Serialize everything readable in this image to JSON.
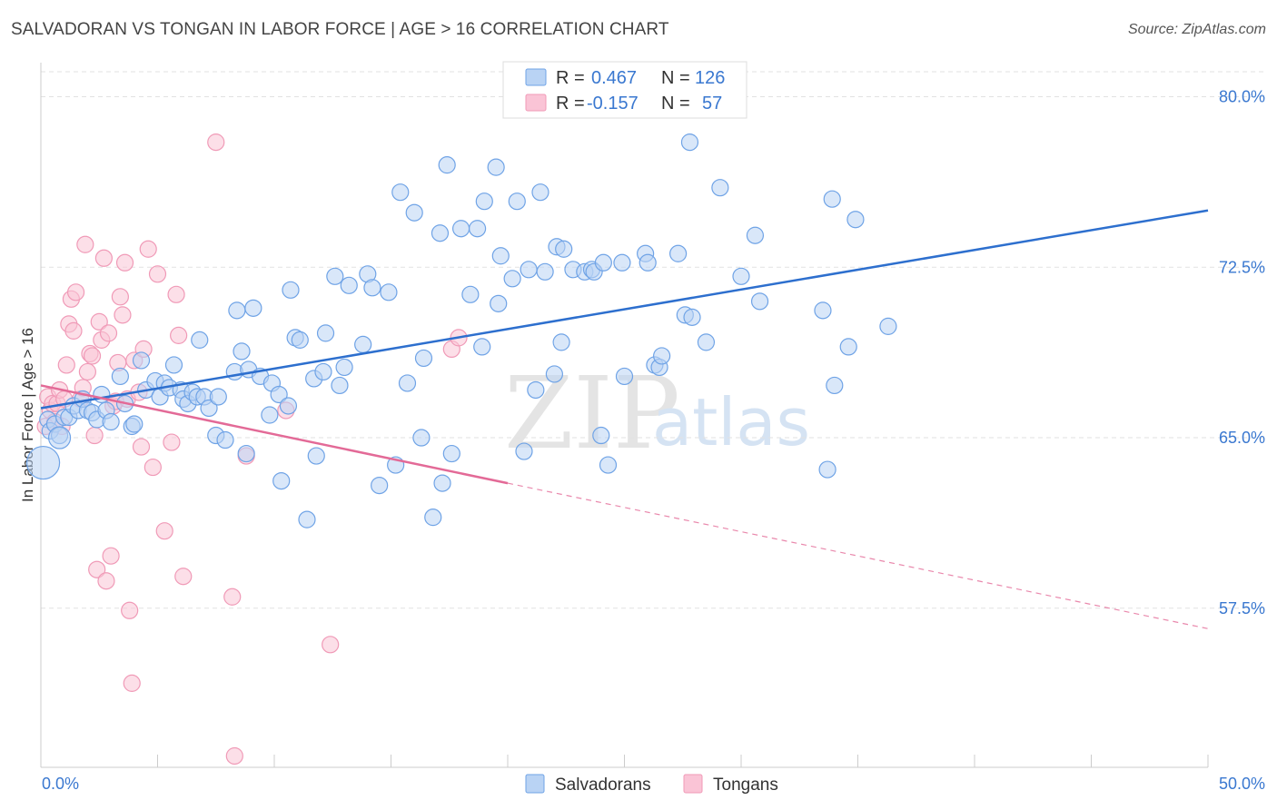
{
  "header": {
    "title": "SALVADORAN VS TONGAN IN LABOR FORCE | AGE > 16 CORRELATION CHART",
    "source": "Source: ZipAtlas.com"
  },
  "chart_data": {
    "type": "scatter",
    "title": "SALVADORAN VS TONGAN IN LABOR FORCE | AGE > 16 CORRELATION CHART",
    "xlabel": "",
    "ylabel": "In Labor Force | Age > 16",
    "xlim": [
      0,
      50
    ],
    "ylim": [
      50.5,
      81.5
    ],
    "y_ticks": [
      57.5,
      65.0,
      72.5,
      80.0
    ],
    "y_tick_labels": [
      "57.5%",
      "65.0%",
      "72.5%",
      "80.0%"
    ],
    "x_tick_labels": [
      "0.0%",
      "50.0%"
    ],
    "grid": true,
    "legend_position": "top-center",
    "watermark": {
      "zip": "ZIP",
      "atlas": "atlas"
    },
    "series": [
      {
        "name": "Salvadorans",
        "r_label": "R =",
        "r_value": "0.467",
        "n_label": "N =",
        "n_value": "126",
        "color": "#6fa3e6",
        "fill": "#b9d3f4",
        "trend": {
          "x0": 0,
          "y0": 66.3,
          "x1": 50,
          "y1": 75.0,
          "color": "#2d6fce"
        },
        "points": [
          [
            0.3,
            65.8
          ],
          [
            0.4,
            65.3
          ],
          [
            0.6,
            65.6
          ],
          [
            0.8,
            65.1
          ],
          [
            1.0,
            65.9
          ],
          [
            1.2,
            65.9
          ],
          [
            1.4,
            66.4
          ],
          [
            1.6,
            66.2
          ],
          [
            1.8,
            66.7
          ],
          [
            2.0,
            66.2
          ],
          [
            2.2,
            66.1
          ],
          [
            2.4,
            65.8
          ],
          [
            2.6,
            66.9
          ],
          [
            2.8,
            66.2
          ],
          [
            3.0,
            65.7
          ],
          [
            3.4,
            67.7
          ],
          [
            3.6,
            66.5
          ],
          [
            3.9,
            65.5
          ],
          [
            4.0,
            65.6
          ],
          [
            4.3,
            68.4
          ],
          [
            4.5,
            67.1
          ],
          [
            4.9,
            67.5
          ],
          [
            5.1,
            66.8
          ],
          [
            5.3,
            67.4
          ],
          [
            5.5,
            67.2
          ],
          [
            5.7,
            68.2
          ],
          [
            6.0,
            67.1
          ],
          [
            6.1,
            66.7
          ],
          [
            6.3,
            66.5
          ],
          [
            6.5,
            67.0
          ],
          [
            6.7,
            66.8
          ],
          [
            6.8,
            69.3
          ],
          [
            7.0,
            66.8
          ],
          [
            7.2,
            66.3
          ],
          [
            7.5,
            65.1
          ],
          [
            7.6,
            66.8
          ],
          [
            7.9,
            64.9
          ],
          [
            8.3,
            67.9
          ],
          [
            8.4,
            70.6
          ],
          [
            8.6,
            68.8
          ],
          [
            8.8,
            64.3
          ],
          [
            8.9,
            68.0
          ],
          [
            9.1,
            70.7
          ],
          [
            9.4,
            67.7
          ],
          [
            9.8,
            66.0
          ],
          [
            9.9,
            67.4
          ],
          [
            10.2,
            66.9
          ],
          [
            10.3,
            63.1
          ],
          [
            10.6,
            66.4
          ],
          [
            10.7,
            71.5
          ],
          [
            10.9,
            69.4
          ],
          [
            11.1,
            69.3
          ],
          [
            11.4,
            61.4
          ],
          [
            11.7,
            67.6
          ],
          [
            11.8,
            64.2
          ],
          [
            12.1,
            67.9
          ],
          [
            12.2,
            69.6
          ],
          [
            12.6,
            72.1
          ],
          [
            12.8,
            67.3
          ],
          [
            13.0,
            68.1
          ],
          [
            13.2,
            71.7
          ],
          [
            13.8,
            69.1
          ],
          [
            14.0,
            72.2
          ],
          [
            14.2,
            71.6
          ],
          [
            14.5,
            62.9
          ],
          [
            14.9,
            71.4
          ],
          [
            15.2,
            63.8
          ],
          [
            15.4,
            75.8
          ],
          [
            15.7,
            67.4
          ],
          [
            16.0,
            74.9
          ],
          [
            16.3,
            65.0
          ],
          [
            16.4,
            68.5
          ],
          [
            16.8,
            61.5
          ],
          [
            17.1,
            74.0
          ],
          [
            17.2,
            63.0
          ],
          [
            17.4,
            77.0
          ],
          [
            17.6,
            64.3
          ],
          [
            18.0,
            74.2
          ],
          [
            18.4,
            71.3
          ],
          [
            18.7,
            74.2
          ],
          [
            18.9,
            69.0
          ],
          [
            19.0,
            75.4
          ],
          [
            19.5,
            76.9
          ],
          [
            19.6,
            70.9
          ],
          [
            19.7,
            73.0
          ],
          [
            20.2,
            72.0
          ],
          [
            20.4,
            75.4
          ],
          [
            20.7,
            64.4
          ],
          [
            20.9,
            72.4
          ],
          [
            21.2,
            67.1
          ],
          [
            21.4,
            75.8
          ],
          [
            21.6,
            72.3
          ],
          [
            22.0,
            67.8
          ],
          [
            22.3,
            69.2
          ],
          [
            22.1,
            73.4
          ],
          [
            22.4,
            73.3
          ],
          [
            22.8,
            72.4
          ],
          [
            23.3,
            72.3
          ],
          [
            23.6,
            72.4
          ],
          [
            23.7,
            72.3
          ],
          [
            24.1,
            72.7
          ],
          [
            24.0,
            65.1
          ],
          [
            24.3,
            63.8
          ],
          [
            24.9,
            72.7
          ],
          [
            25.0,
            67.7
          ],
          [
            25.9,
            73.1
          ],
          [
            26.0,
            72.7
          ],
          [
            26.3,
            68.2
          ],
          [
            26.5,
            68.1
          ],
          [
            26.6,
            68.6
          ],
          [
            27.3,
            73.1
          ],
          [
            27.6,
            70.4
          ],
          [
            27.8,
            78.0
          ],
          [
            27.9,
            70.3
          ],
          [
            28.5,
            69.2
          ],
          [
            29.1,
            76.0
          ],
          [
            30.0,
            72.1
          ],
          [
            30.6,
            73.9
          ],
          [
            30.8,
            71.0
          ],
          [
            33.5,
            70.6
          ],
          [
            33.9,
            75.5
          ],
          [
            33.7,
            63.6
          ],
          [
            34.0,
            67.3
          ],
          [
            34.6,
            69.0
          ],
          [
            34.9,
            74.6
          ],
          [
            36.3,
            69.9
          ],
          [
            0.1,
            63.9
          ],
          [
            0.8,
            65.0
          ]
        ]
      },
      {
        "name": "Tongans",
        "r_label": "R =",
        "r_value": "-0.157",
        "n_label": "N =",
        "n_value": "57",
        "color": "#f09ab7",
        "fill": "#fac4d6",
        "trend": {
          "x0": 0,
          "y0": 67.3,
          "x1": 20,
          "y1": 63.0,
          "color": "#e36a97"
        },
        "trend_dashed": {
          "x0": 20,
          "y0": 63.0,
          "x1": 50,
          "y1": 56.6
        },
        "points": [
          [
            0.3,
            66.8
          ],
          [
            0.4,
            66.2
          ],
          [
            0.5,
            66.5
          ],
          [
            0.6,
            65.7
          ],
          [
            0.7,
            66.5
          ],
          [
            0.8,
            67.1
          ],
          [
            0.9,
            65.5
          ],
          [
            1.0,
            66.7
          ],
          [
            1.1,
            68.2
          ],
          [
            1.2,
            70.0
          ],
          [
            1.3,
            71.1
          ],
          [
            1.4,
            69.7
          ],
          [
            1.5,
            71.4
          ],
          [
            1.7,
            66.7
          ],
          [
            1.8,
            67.2
          ],
          [
            1.9,
            73.5
          ],
          [
            2.0,
            67.9
          ],
          [
            2.1,
            68.7
          ],
          [
            2.2,
            68.6
          ],
          [
            2.3,
            65.1
          ],
          [
            2.4,
            59.2
          ],
          [
            2.5,
            70.1
          ],
          [
            2.6,
            69.3
          ],
          [
            2.7,
            72.9
          ],
          [
            2.8,
            58.7
          ],
          [
            2.9,
            69.6
          ],
          [
            3.0,
            59.8
          ],
          [
            3.1,
            66.4
          ],
          [
            3.2,
            66.6
          ],
          [
            3.3,
            68.3
          ],
          [
            3.4,
            71.2
          ],
          [
            3.5,
            70.4
          ],
          [
            3.6,
            72.7
          ],
          [
            3.7,
            66.7
          ],
          [
            3.8,
            57.4
          ],
          [
            3.9,
            54.2
          ],
          [
            4.0,
            68.4
          ],
          [
            4.2,
            67.0
          ],
          [
            4.3,
            64.6
          ],
          [
            4.4,
            68.9
          ],
          [
            4.6,
            73.3
          ],
          [
            4.8,
            63.7
          ],
          [
            5.0,
            72.2
          ],
          [
            5.3,
            60.9
          ],
          [
            5.6,
            64.8
          ],
          [
            5.8,
            71.3
          ],
          [
            5.9,
            69.5
          ],
          [
            6.1,
            58.9
          ],
          [
            7.5,
            78.0
          ],
          [
            8.2,
            58.0
          ],
          [
            8.3,
            51.0
          ],
          [
            8.8,
            64.2
          ],
          [
            10.5,
            66.2
          ],
          [
            12.4,
            55.9
          ],
          [
            17.6,
            68.9
          ],
          [
            17.9,
            69.4
          ],
          [
            0.2,
            65.5
          ]
        ]
      }
    ]
  }
}
